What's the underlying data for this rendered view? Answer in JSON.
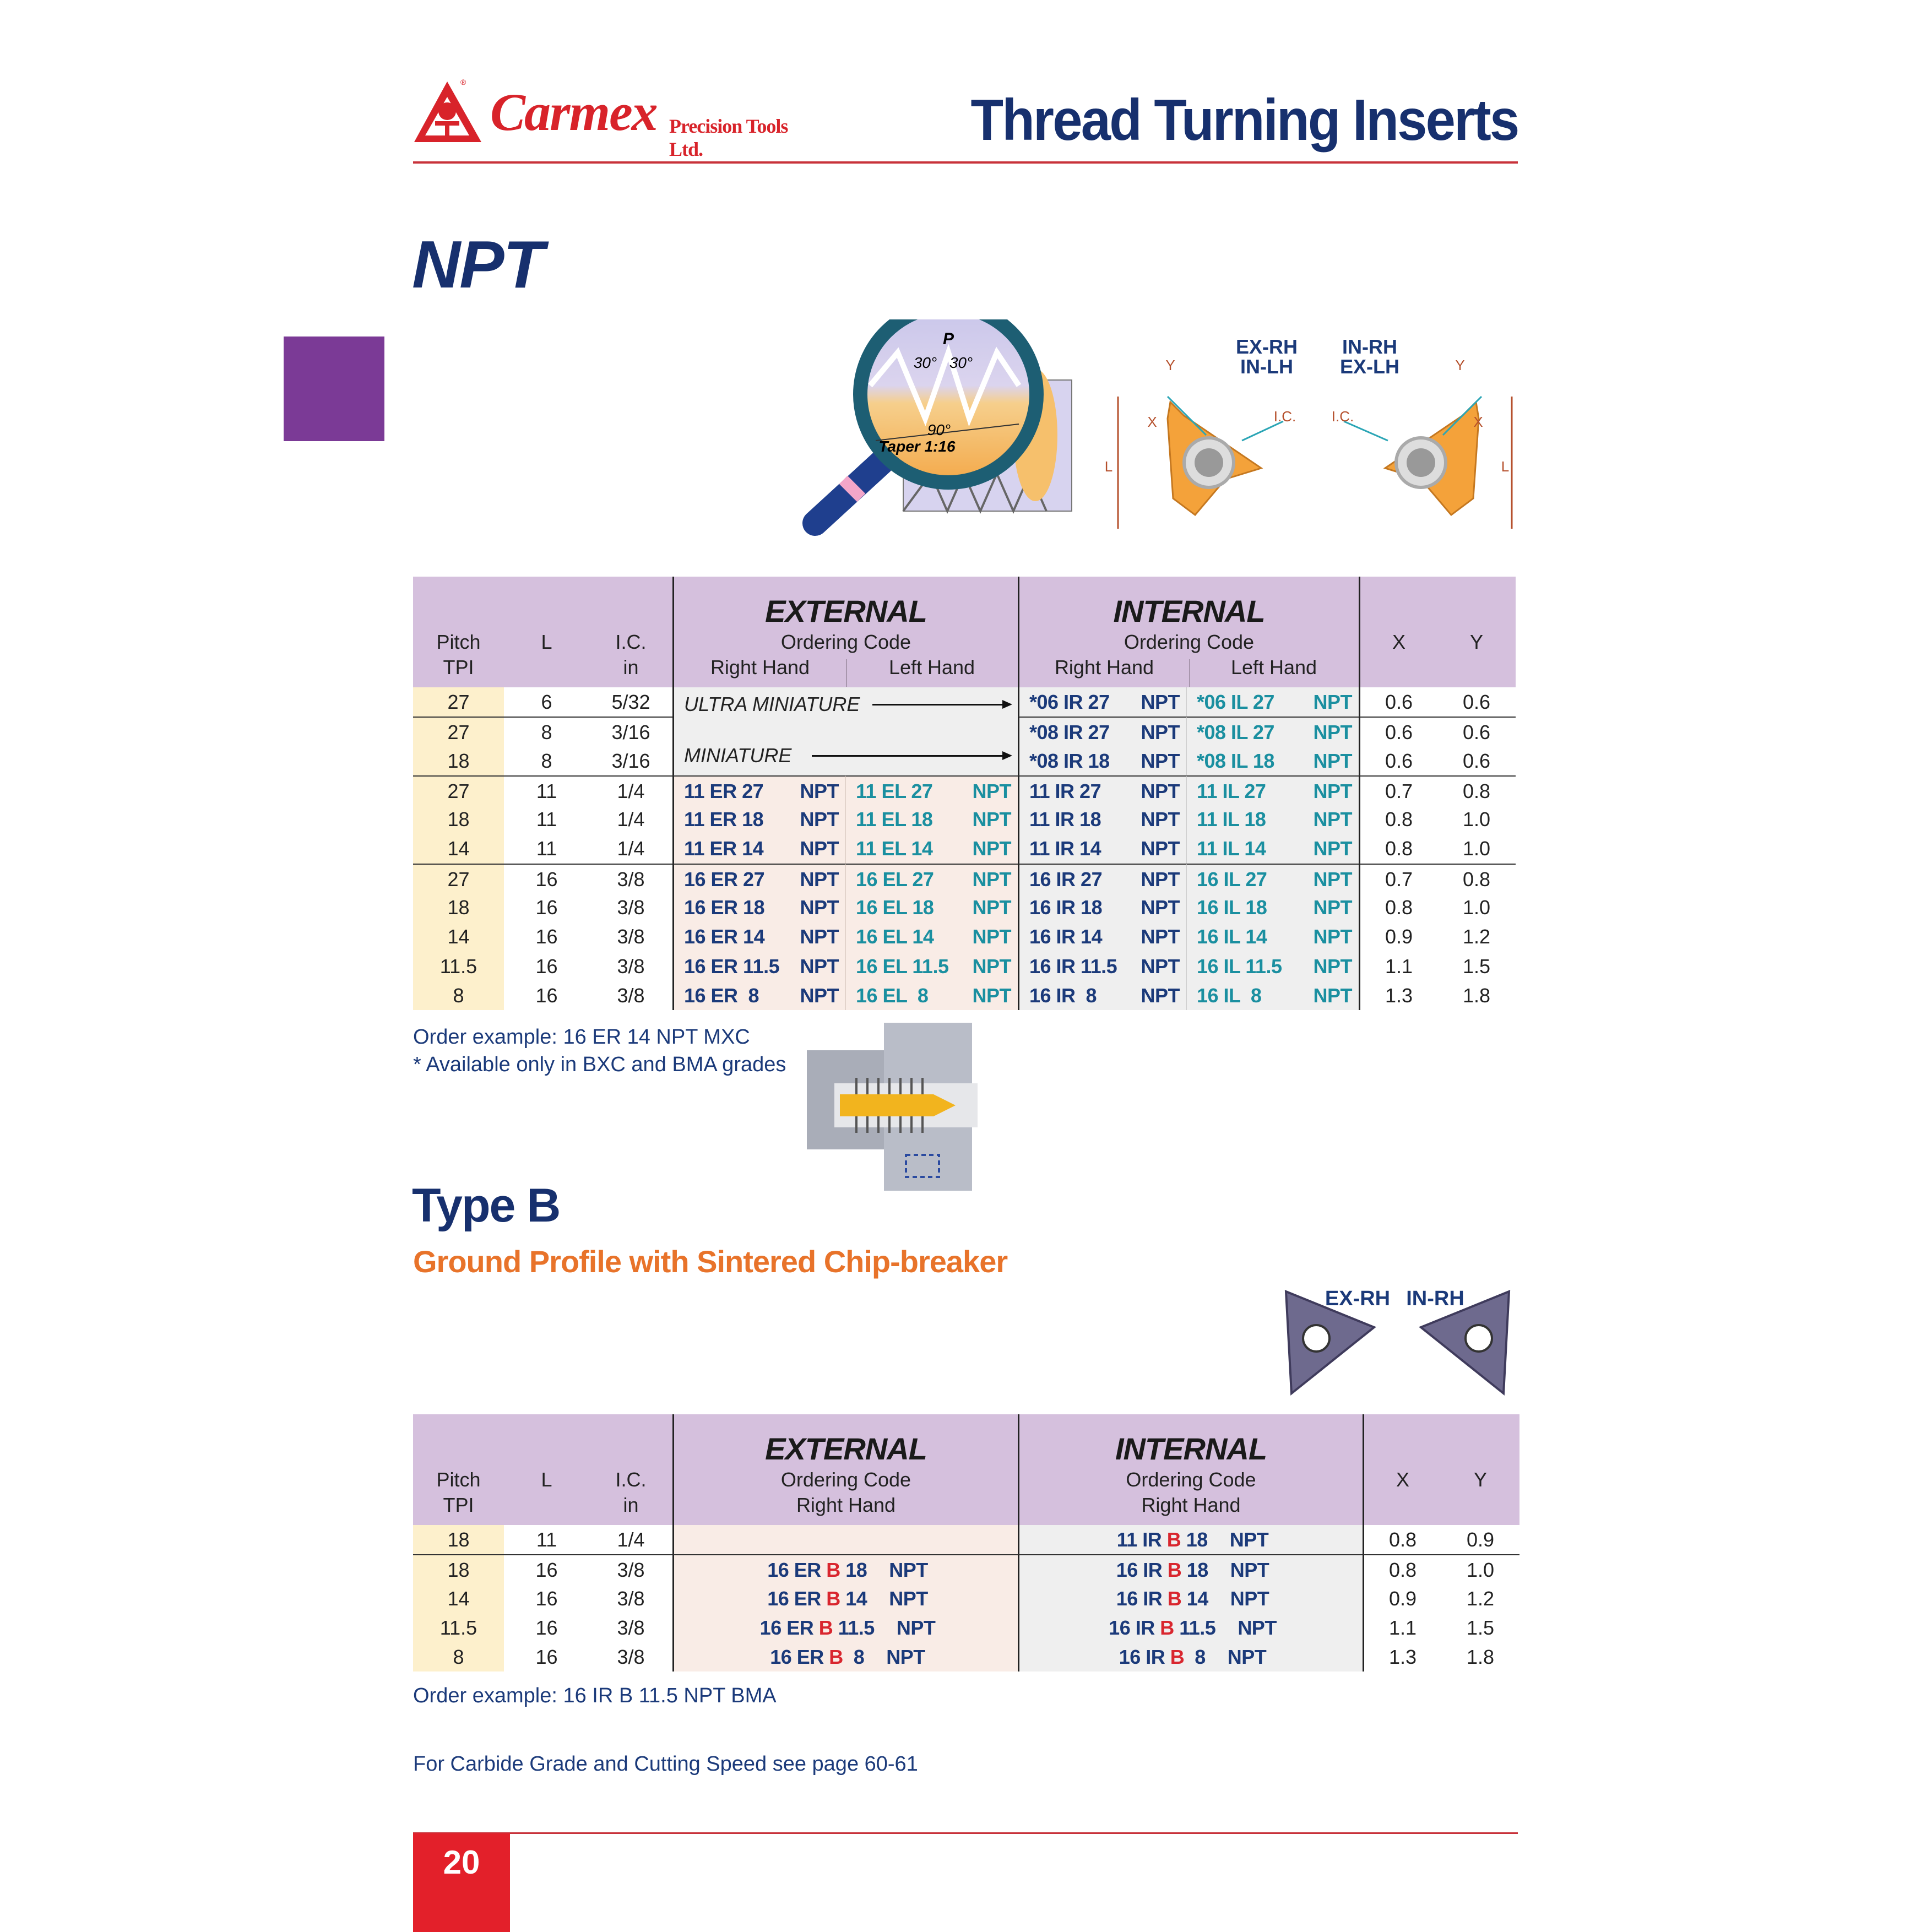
{
  "header": {
    "brand": "Carmex",
    "brand_sub": "Precision Tools Ltd.",
    "title": "Thread Turning Inserts"
  },
  "colors": {
    "navy": "#1b3a7a",
    "teal": "#1a8fa0",
    "red": "#d9262e",
    "orange": "#e8732a",
    "purple_tab": "#7b3a96",
    "header_bg": "#d5c0dd",
    "page_red": "#e3202a"
  },
  "npt": {
    "heading": "NPT",
    "diagram": {
      "pitch": "P",
      "angle_left": "30°",
      "angle_right": "30°",
      "angle_axis": "90°",
      "taper": "Taper 1:16",
      "left_insert_label_1": "EX-RH",
      "left_insert_label_2": "IN-LH",
      "right_insert_label_1": "IN-RH",
      "right_insert_label_2": "EX-LH",
      "ic": "I.C.",
      "x": "X",
      "y": "Y",
      "l": "L"
    },
    "table": {
      "headers": {
        "pitch": "Pitch",
        "tpi": "TPI",
        "l": "L",
        "ic": "I.C.",
        "ic_unit": "in",
        "external": "EXTERNAL",
        "internal": "INTERNAL",
        "ordering_code": "Ordering Code",
        "right_hand": "Right Hand",
        "left_hand": "Left Hand",
        "x": "X",
        "y": "Y"
      },
      "ultra_miniature": "ULTRA MINIATURE",
      "miniature": "MINIATURE",
      "rows": [
        {
          "pitch": "27",
          "l": "6",
          "ic": "5/32",
          "ext_rh": null,
          "ext_lh": null,
          "int_rh": {
            "code": "*06 IR 27",
            "suffix": "NPT"
          },
          "int_lh": {
            "code": "*06 IL 27",
            "suffix": "NPT"
          },
          "x": "0.6",
          "y": "0.6"
        },
        {
          "pitch": "27",
          "l": "8",
          "ic": "3/16",
          "ext_rh": null,
          "ext_lh": null,
          "int_rh": {
            "code": "*08 IR 27",
            "suffix": "NPT"
          },
          "int_lh": {
            "code": "*08 IL 27",
            "suffix": "NPT"
          },
          "x": "0.6",
          "y": "0.6"
        },
        {
          "pitch": "18",
          "l": "8",
          "ic": "3/16",
          "ext_rh": null,
          "ext_lh": null,
          "int_rh": {
            "code": "*08 IR 18",
            "suffix": "NPT"
          },
          "int_lh": {
            "code": "*08 IL 18",
            "suffix": "NPT"
          },
          "x": "0.6",
          "y": "0.6"
        },
        {
          "pitch": "27",
          "l": "11",
          "ic": "1/4",
          "ext_rh": {
            "code": "11 ER 27",
            "suffix": "NPT"
          },
          "ext_lh": {
            "code": "11 EL 27",
            "suffix": "NPT"
          },
          "int_rh": {
            "code": "11 IR 27",
            "suffix": "NPT"
          },
          "int_lh": {
            "code": "11 IL 27",
            "suffix": "NPT"
          },
          "x": "0.7",
          "y": "0.8"
        },
        {
          "pitch": "18",
          "l": "11",
          "ic": "1/4",
          "ext_rh": {
            "code": "11 ER 18",
            "suffix": "NPT"
          },
          "ext_lh": {
            "code": "11 EL 18",
            "suffix": "NPT"
          },
          "int_rh": {
            "code": "11 IR 18",
            "suffix": "NPT"
          },
          "int_lh": {
            "code": "11 IL 18",
            "suffix": "NPT"
          },
          "x": "0.8",
          "y": "1.0"
        },
        {
          "pitch": "14",
          "l": "11",
          "ic": "1/4",
          "ext_rh": {
            "code": "11 ER 14",
            "suffix": "NPT"
          },
          "ext_lh": {
            "code": "11 EL 14",
            "suffix": "NPT"
          },
          "int_rh": {
            "code": "11 IR 14",
            "suffix": "NPT"
          },
          "int_lh": {
            "code": "11 IL 14",
            "suffix": "NPT"
          },
          "x": "0.8",
          "y": "1.0"
        },
        {
          "pitch": "27",
          "l": "16",
          "ic": "3/8",
          "ext_rh": {
            "code": "16 ER 27",
            "suffix": "NPT"
          },
          "ext_lh": {
            "code": "16 EL 27",
            "suffix": "NPT"
          },
          "int_rh": {
            "code": "16 IR 27",
            "suffix": "NPT"
          },
          "int_lh": {
            "code": "16 IL 27",
            "suffix": "NPT"
          },
          "x": "0.7",
          "y": "0.8"
        },
        {
          "pitch": "18",
          "l": "16",
          "ic": "3/8",
          "ext_rh": {
            "code": "16 ER 18",
            "suffix": "NPT"
          },
          "ext_lh": {
            "code": "16 EL 18",
            "suffix": "NPT"
          },
          "int_rh": {
            "code": "16 IR 18",
            "suffix": "NPT"
          },
          "int_lh": {
            "code": "16 IL 18",
            "suffix": "NPT"
          },
          "x": "0.8",
          "y": "1.0"
        },
        {
          "pitch": "14",
          "l": "16",
          "ic": "3/8",
          "ext_rh": {
            "code": "16 ER 14",
            "suffix": "NPT"
          },
          "ext_lh": {
            "code": "16 EL 14",
            "suffix": "NPT"
          },
          "int_rh": {
            "code": "16 IR 14",
            "suffix": "NPT"
          },
          "int_lh": {
            "code": "16 IL 14",
            "suffix": "NPT"
          },
          "x": "0.9",
          "y": "1.2"
        },
        {
          "pitch": "11.5",
          "l": "16",
          "ic": "3/8",
          "ext_rh": {
            "code": "16 ER 11.5",
            "suffix": "NPT"
          },
          "ext_lh": {
            "code": "16 EL 11.5",
            "suffix": "NPT"
          },
          "int_rh": {
            "code": "16 IR 11.5",
            "suffix": "NPT"
          },
          "int_lh": {
            "code": "16 IL 11.5",
            "suffix": "NPT"
          },
          "x": "1.1",
          "y": "1.5"
        },
        {
          "pitch": "8",
          "l": "16",
          "ic": "3/8",
          "ext_rh": {
            "code": "16 ER  8",
            "suffix": "NPT"
          },
          "ext_lh": {
            "code": "16 EL  8",
            "suffix": "NPT"
          },
          "int_rh": {
            "code": "16 IR  8",
            "suffix": "NPT"
          },
          "int_lh": {
            "code": "16 IL  8",
            "suffix": "NPT"
          },
          "x": "1.3",
          "y": "1.8"
        }
      ]
    },
    "order_example": "Order example: 16 ER 14 NPT MXC",
    "availability_note": "* Available only in BXC and BMA grades"
  },
  "type_b": {
    "heading": "Type B",
    "subheading": "Ground Profile with Sintered Chip-breaker",
    "insert_label_left": "EX-RH",
    "insert_label_right": "IN-RH",
    "table": {
      "headers": {
        "pitch": "Pitch",
        "tpi": "TPI",
        "l": "L",
        "ic": "I.C.",
        "ic_unit": "in",
        "external": "EXTERNAL",
        "internal": "INTERNAL",
        "ordering_code": "Ordering Code",
        "right_hand": "Right Hand",
        "x": "X",
        "y": "Y"
      },
      "rows": [
        {
          "pitch": "18",
          "l": "11",
          "ic": "1/4",
          "ext": null,
          "int": {
            "pre": "11 IR ",
            "b": "B",
            "post": " 18",
            "suffix": "NPT"
          },
          "x": "0.8",
          "y": "0.9"
        },
        {
          "pitch": "18",
          "l": "16",
          "ic": "3/8",
          "ext": {
            "pre": "16 ER ",
            "b": "B",
            "post": " 18",
            "suffix": "NPT"
          },
          "int": {
            "pre": "16 IR ",
            "b": "B",
            "post": " 18",
            "suffix": "NPT"
          },
          "x": "0.8",
          "y": "1.0"
        },
        {
          "pitch": "14",
          "l": "16",
          "ic": "3/8",
          "ext": {
            "pre": "16 ER ",
            "b": "B",
            "post": " 14",
            "suffix": "NPT"
          },
          "int": {
            "pre": "16 IR ",
            "b": "B",
            "post": " 14",
            "suffix": "NPT"
          },
          "x": "0.9",
          "y": "1.2"
        },
        {
          "pitch": "11.5",
          "l": "16",
          "ic": "3/8",
          "ext": {
            "pre": "16 ER ",
            "b": "B",
            "post": " 11.5",
            "suffix": "NPT"
          },
          "int": {
            "pre": "16 IR ",
            "b": "B",
            "post": " 11.5",
            "suffix": "NPT"
          },
          "x": "1.1",
          "y": "1.5"
        },
        {
          "pitch": "8",
          "l": "16",
          "ic": "3/8",
          "ext": {
            "pre": "16 ER ",
            "b": "B",
            "post": "  8",
            "suffix": "NPT"
          },
          "int": {
            "pre": "16 IR ",
            "b": "B",
            "post": "  8",
            "suffix": "NPT"
          },
          "x": "1.3",
          "y": "1.8"
        }
      ]
    },
    "order_example": "Order example: 16 IR B 11.5 NPT BMA"
  },
  "footer": {
    "reference": "For Carbide Grade and Cutting Speed see page 60-61",
    "page_number": "20"
  }
}
